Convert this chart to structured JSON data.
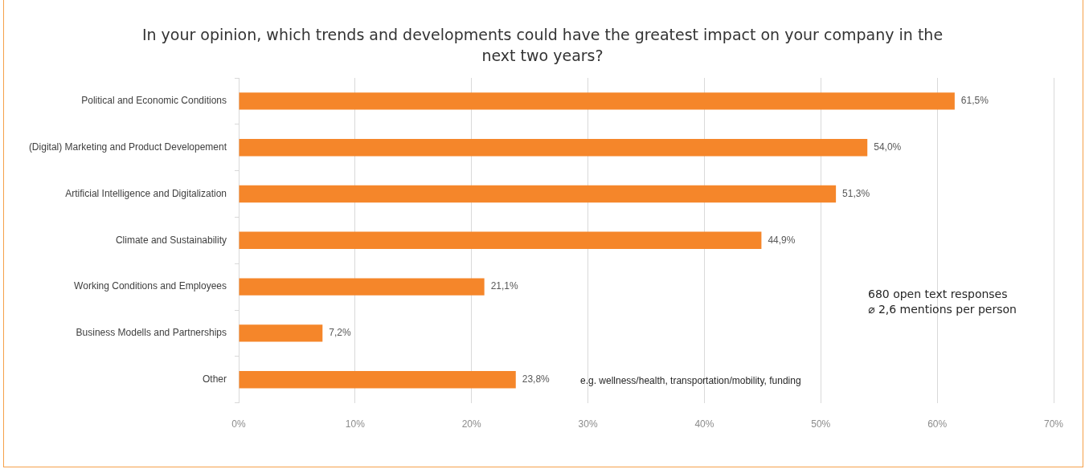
{
  "chart_data": {
    "type": "bar",
    "orientation": "horizontal",
    "title": "In your opinion, which trends and developments could have the greatest impact on your company in the next two years?",
    "categories": [
      "Political and Economic Conditions",
      "(Digital) Marketing and Product Developement",
      "Artificial Intelligence and Digitalization",
      "Climate and Sustainability",
      "Working Conditions and Employees",
      "Business Modells and Partnerships",
      "Other"
    ],
    "values": [
      61.5,
      54.0,
      51.3,
      44.9,
      21.1,
      7.2,
      23.8
    ],
    "value_labels": [
      "61,5%",
      "54,0%",
      "51,3%",
      "44,9%",
      "21,1%",
      "7,2%",
      "23,8%"
    ],
    "color": "#f5862a",
    "xlim": [
      0,
      70
    ],
    "xticks": [
      {
        "value": 0,
        "label": "0%"
      },
      {
        "value": 10,
        "label": "10%"
      },
      {
        "value": 20,
        "label": "20%"
      },
      {
        "value": 30,
        "label": "30%"
      },
      {
        "value": 40,
        "label": "40%"
      },
      {
        "value": 50,
        "label": "50%"
      },
      {
        "value": 60,
        "label": "60%"
      },
      {
        "value": 70,
        "label": "70%"
      }
    ],
    "grid": "x",
    "legend": false,
    "annotations": [
      "e.g. wellness/health, transportation/mobility, funding",
      "680 open text responses\n⌀ 2,6 mentions per person"
    ]
  }
}
